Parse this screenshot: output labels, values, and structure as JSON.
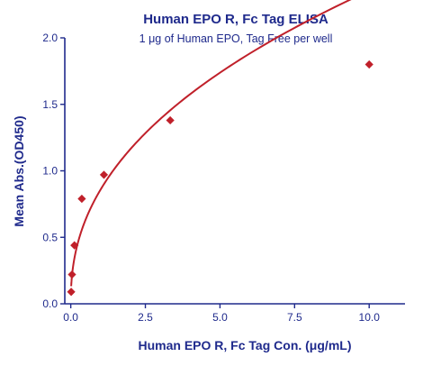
{
  "chart_data": {
    "type": "scatter",
    "title": "Human EPO R, Fc Tag ELISA",
    "subtitle": "1 μg of Human EPO, Tag Free per well",
    "xlabel": "Human EPO R, Fc Tag Con. (μg/mL)",
    "ylabel": "Mean Abs.(OD450)",
    "xlim": [
      -0.2,
      11.2
    ],
    "ylim": [
      0,
      2.0
    ],
    "x_ticks": [
      "0.0",
      "2.5",
      "5.0",
      "7.5",
      "10.0"
    ],
    "y_ticks": [
      "0.0",
      "0.5",
      "1.0",
      "1.5",
      "2.0"
    ],
    "grid": false,
    "series": [
      {
        "color": "#c0202a",
        "marker": "diamond",
        "fit_line": true,
        "x": [
          0.014,
          0.041,
          0.123,
          0.37,
          1.111,
          3.333,
          10.0
        ],
        "y": [
          0.09,
          0.22,
          0.44,
          0.79,
          0.97,
          1.38,
          1.8
        ]
      }
    ]
  }
}
